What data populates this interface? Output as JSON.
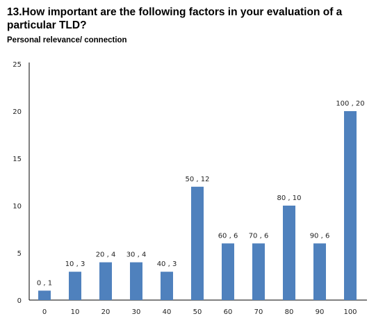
{
  "title": "13.How important are the following factors in your evaluation of a particular TLD?",
  "subtitle": "Personal relevance/ connection",
  "colors": {
    "bar": "#4f81bd",
    "axis": "#000000",
    "text": "#222222"
  },
  "chart_data": {
    "type": "bar",
    "title": "Personal relevance/ connection",
    "xlabel": "",
    "ylabel": "",
    "ylim": [
      0,
      25
    ],
    "yticks": [
      0,
      5,
      10,
      15,
      20,
      25
    ],
    "grid": false,
    "legend": "none",
    "categories": [
      "0",
      "10",
      "20",
      "30",
      "40",
      "50",
      "60",
      "70",
      "80",
      "90",
      "100"
    ],
    "values": [
      1,
      3,
      4,
      4,
      3,
      12,
      6,
      6,
      10,
      6,
      20
    ],
    "data_labels": [
      "0 , 1",
      "10 , 3",
      "20 , 4",
      "30 , 4",
      "40 , 3",
      "50 , 12",
      "60 , 6",
      "70 , 6",
      "80 , 10",
      "90 , 6",
      "100 , 20"
    ]
  }
}
